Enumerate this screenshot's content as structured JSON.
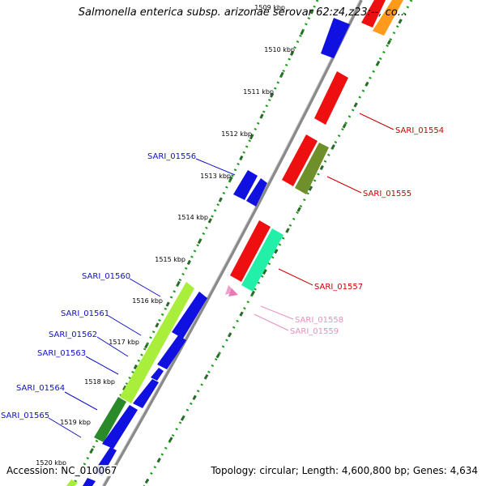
{
  "title": "Salmonella enterica subsp. arizonae serovar 62:z4,z23:--, co...",
  "footer": {
    "accession": "Accession: NC_010067",
    "summary": "Topology: circular; Length: 4,600,800 bp; Genes: 4,634"
  },
  "colors": {
    "backbone": "#8a8a8a",
    "tick_green": "#1a8a1a",
    "tick_dark": "#2a6a2a",
    "blue": "#1010e0",
    "red": "#ee1010",
    "olive": "#6f8f2a",
    "teal": "#22f0a8",
    "lime": "#a8ee3a",
    "dark_green": "#2a8a2a",
    "orange": "#ff9a1a",
    "pink": "#f0a0c8",
    "label_blue": "#1010c8",
    "label_red": "#c80000",
    "label_pink": "#e890c0"
  },
  "kbp_ticks": [
    "1509 kbp",
    "1510 kbp",
    "1511 kbp",
    "1512 kbp",
    "1513 kbp",
    "1514 kbp",
    "1515 kbp",
    "1516 kbp",
    "1517 kbp",
    "1518 kbp",
    "1519 kbp",
    "1520 kbp"
  ],
  "genes": [
    {
      "name": "SARI_01554",
      "color": "red"
    },
    {
      "name": "SARI_01555",
      "color": "red"
    },
    {
      "name": "SARI_01556",
      "color": "blue"
    },
    {
      "name": "SARI_01557",
      "color": "red"
    },
    {
      "name": "SARI_01558",
      "color": "pink"
    },
    {
      "name": "SARI_01559",
      "color": "pink"
    },
    {
      "name": "SARI_01560",
      "color": "blue"
    },
    {
      "name": "SARI_01561",
      "color": "blue"
    },
    {
      "name": "SARI_01562",
      "color": "blue"
    },
    {
      "name": "SARI_01563",
      "color": "blue"
    },
    {
      "name": "SARI_01564",
      "color": "blue"
    },
    {
      "name": "SARI_01565",
      "color": "blue"
    }
  ]
}
